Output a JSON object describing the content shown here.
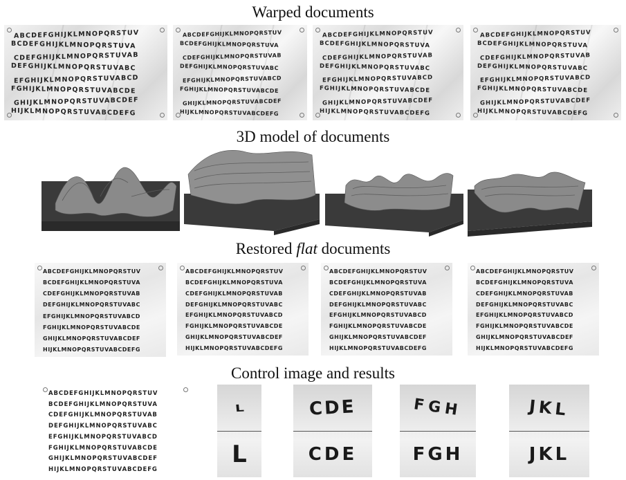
{
  "titles": {
    "warped": "Warped documents",
    "model": "3D model of documents",
    "restored_prefix": "Restored ",
    "restored_italic": "flat",
    "restored_suffix": " documents",
    "control": "Control image and results"
  },
  "warped_docs": [
    {
      "lines": [
        "ABCDEFGHIJKLMNOPQRSTUV",
        "BCDEFGHIJKLMNOPQRSTUVA",
        "CDEFGHIJKLMNOPQRSTUVAB",
        "DEFGHIJKLMNOPQRSTUVABC",
        "EFGHIJKLMNOPQRSTUVABCD",
        "FGHIJKLMNOPQRSTUVABCDE",
        "GHIJKLMNOPQRSTUVABCDEF",
        "HIJKLMNOPQRSTUVABCDEFG"
      ]
    },
    {
      "lines": [
        "ABCDEFGHIJKLMNOPQRSTUV",
        "BCDEFGHIJKLMNOPQRSTUVA",
        "CDEFGHIJKLMNOPQRSTUVAB",
        "DEFGHIJKLMNOPQRSTUVABC",
        "EFGHIJKLMNOPQRSTUVABCD",
        "FGHIJKLMNOPQRSTUVABCDE",
        "GHIJKLMNOPQRSTUVABCDEF",
        "HIJKLMNOPQRSTUVABCDEFG"
      ]
    },
    {
      "lines": [
        "ABCDEFGHIJKLMNOPQRSTUV",
        "BCDEFGHIJKLMNOPQRSTUVA",
        "CDEFGHIJKLMNOPQRSTUVAB",
        "DEFGHIJKLMNOPQRSTUVABC",
        "EFGHIJKLMNOPQRSTUVABCD",
        "FGHIJKLMNOPQRSTUVABCDE",
        "GHIJKLMNOPQRSTUVABCDEF",
        "HIJKLMNOPQRSTUVABCDEFG"
      ]
    },
    {
      "lines": [
        "ABCDEFGHIJKLMNOPQRSTUV",
        "BCDEFGHIJKLMNOPQRSTUVA",
        "CDEFGHIJKLMNOPQRSTUVAB",
        "DEFGHIJKLMNOPQRSTUVABC",
        "EFGHIJKLMNOPQRSTUVABCD",
        "FGHIJKLMNOPQRSTUVABCDE",
        "GHIJKLMNOPQRSTUVABCDEF",
        "HIJKLMNOPQRSTUVABCDEFG"
      ]
    }
  ],
  "restored_docs": [
    {
      "lines": [
        "ABCDEFGHIJKLMNOPQRSTUV",
        "BCDEFGHIJKLMNOPQRSTUVA",
        "CDEFGHIJKLMNOPQRSTUVAB",
        "DEFGHIJKLMNOPQRSTUVABC",
        "EFGHIJKLMNOPQRSTUVABCD",
        "FGHIJKLMNOPQRSTUVABCDE",
        "GHIJKLMNOPQRSTUVABCDEF",
        "HIJKLMNOPQRSTUVABCDEFG"
      ]
    },
    {
      "lines": [
        "ABCDEFGHIJKLMNOPQRSTUV",
        "BCDEFGHIJKLMNOPQRSTUVA",
        "CDEFGHIJKLMNOPQRSTUVAB",
        "DEFGHIJKLMNOPQRSTUVABC",
        "EFGHIJKLMNOPQRSTUVABCD",
        "FGHIJKLMNOPQRSTUVABCDE",
        "GHIJKLMNOPQRSTUVABCDEF",
        "HIJKLMNOPQRSTUVABCDEFG"
      ]
    },
    {
      "lines": [
        "ABCDEFGHIJKLMNOPQRSTUV",
        "BCDEFGHIJKLMNOPQRSTUVA",
        "CDEFGHIJKLMNOPQRSTUVAB",
        "DEFGHIJKLMNOPQRSTUVABC",
        "EFGHIJKLMNOPQRSTUVABCD",
        "FGHIJKLMNOPQRSTUVABCDE",
        "GHIJKLMNOPQRSTUVABCDEF",
        "HIJKLMNOPQRSTUVABCDEFG"
      ]
    },
    {
      "lines": [
        "ABCDEFGHIJKLMNOPQRSTUV",
        "BCDEFGHIJKLMNOPQRSTUVA",
        "CDEFGHIJKLMNOPQRSTUVAB",
        "DEFGHIJKLMNOPQRSTUVABC",
        "EFGHIJKLMNOPQRSTUVABCD",
        "FGHIJKLMNOPQRSTUVABCDE",
        "GHIJKLMNOPQRSTUVABCDEF",
        "HIJKLMNOPQRSTUVABCDEFG"
      ]
    }
  ],
  "control_doc": {
    "lines": [
      "ABCDEFGHIJKLMNOPQRSTUV",
      "BCDEFGHIJKLMNOPQRSTUVA",
      "CDEFGHIJKLMNOPQRSTUVAB",
      "DEFGHIJKLMNOPQRSTUVABC",
      "EFGHIJKLMNOPQRSTUVABCD",
      "FGHIJKLMNOPQRSTUVABCDE",
      "GHIJKLMNOPQRSTUVABCDEF",
      "HIJKLMNOPQRSTUVABCDEFG"
    ]
  },
  "crops": [
    {
      "warped": "L",
      "restored": "L"
    },
    {
      "warped": "CDE",
      "restored": "CDE"
    },
    {
      "warped": "FGH",
      "restored": "FGH"
    },
    {
      "warped": "JKL",
      "restored": "JKL"
    }
  ],
  "colors": {
    "model_surface": "#8a8a8a",
    "model_base_top": "#3a3a3a",
    "model_base_side": "#2a2a2a"
  }
}
